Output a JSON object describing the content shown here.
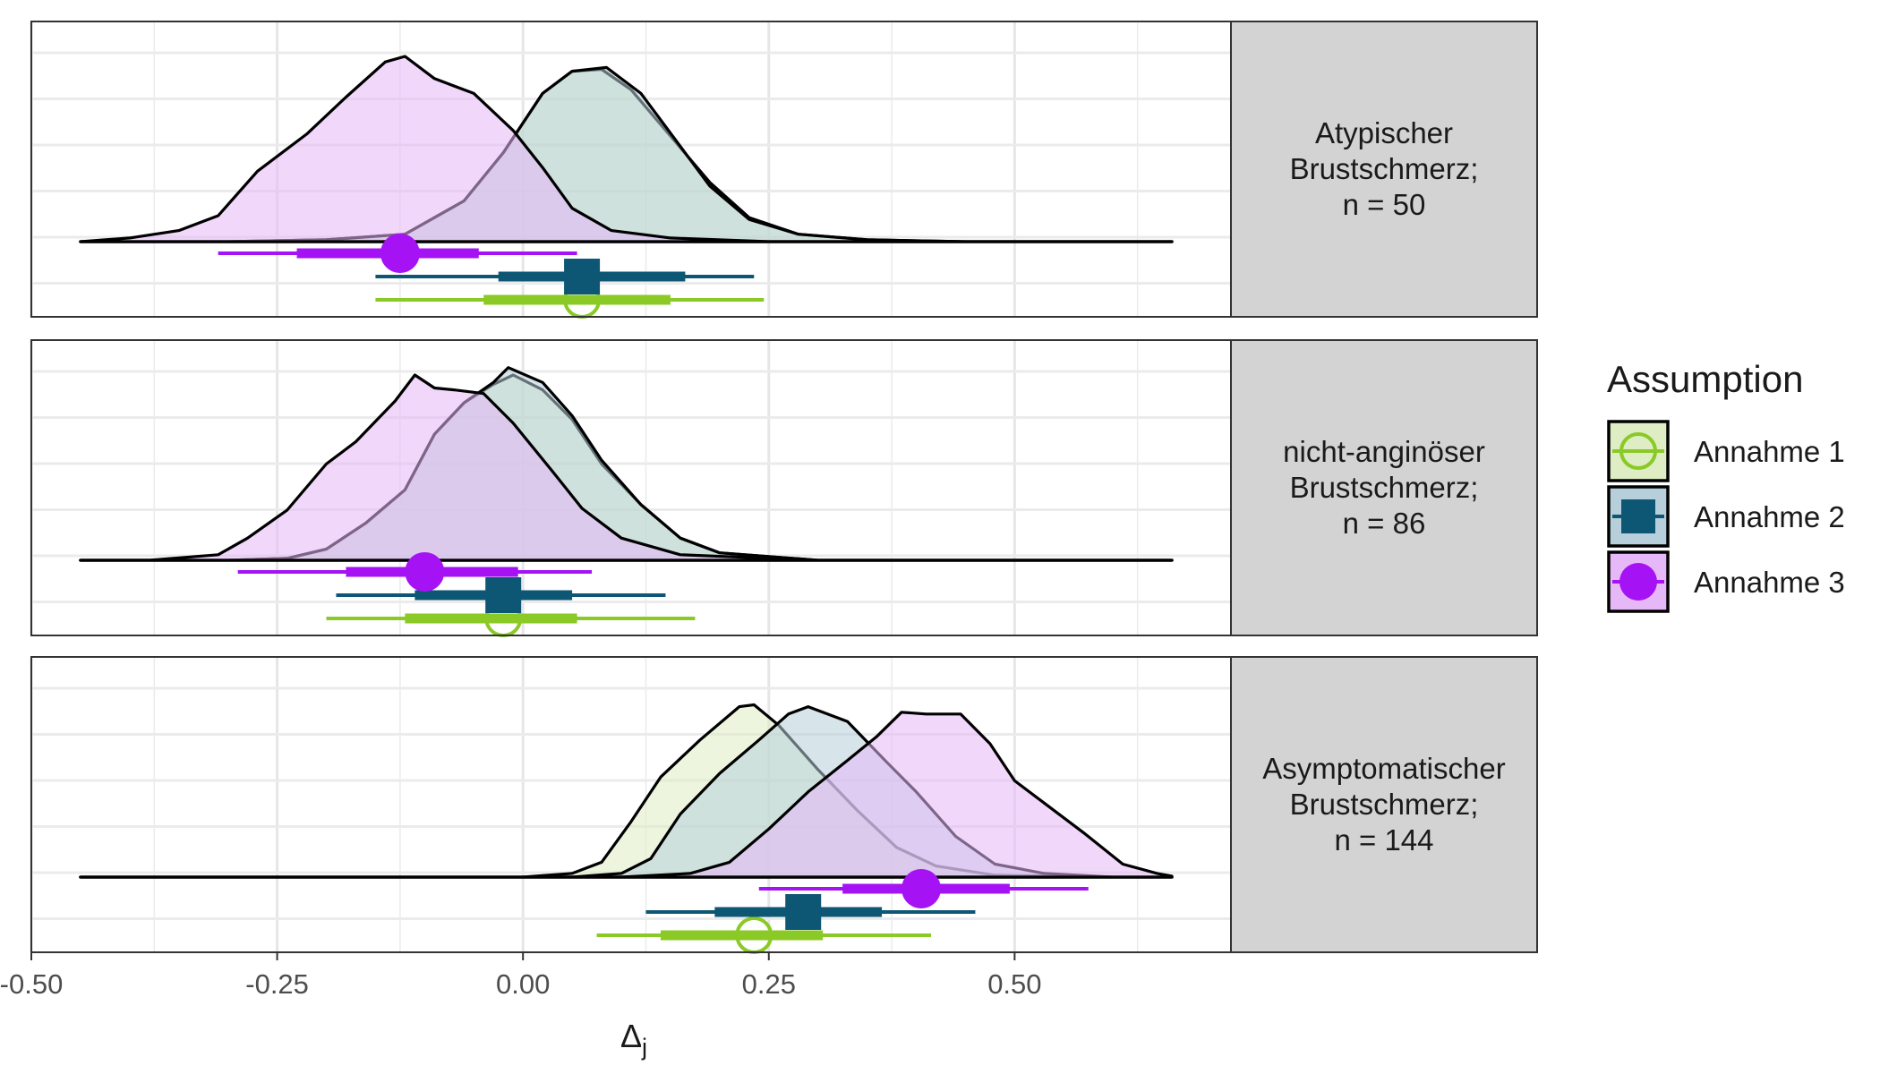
{
  "chart_data": {
    "type": "density",
    "xlabel": "Δ",
    "xlabel_sub": "j",
    "xlim": [
      -0.5,
      0.72
    ],
    "xticks": [
      -0.5,
      -0.25,
      0.0,
      0.25,
      0.5
    ],
    "xtick_labels": [
      "-0.50",
      "-0.25",
      "0.00",
      "0.25",
      "0.50"
    ],
    "grid": true,
    "legend": {
      "title": "Assumption",
      "placement": "right",
      "items": [
        {
          "label": "Annahme 1",
          "color": "#8ac926",
          "fill": "#deedc4",
          "shape": "open-circle"
        },
        {
          "label": "Annahme 2",
          "color": "#0d5775",
          "fill": "#b6cfda",
          "shape": "square"
        },
        {
          "label": "Annahme 3",
          "color": "#a513f4",
          "fill": "#e6b8f8",
          "shape": "circle"
        }
      ]
    },
    "panels": [
      {
        "label": [
          "Atypischer",
          "Brustschmerz;",
          "n = 50"
        ],
        "densities": [
          {
            "series": "Annahme 1",
            "points": [
              [
                -0.45,
                0
              ],
              [
                -0.3,
                0
              ],
              [
                -0.2,
                0.01
              ],
              [
                -0.12,
                0.04
              ],
              [
                -0.06,
                0.22
              ],
              [
                -0.02,
                0.48
              ],
              [
                0.02,
                0.8
              ],
              [
                0.05,
                0.92
              ],
              [
                0.08,
                0.93
              ],
              [
                0.11,
                0.82
              ],
              [
                0.15,
                0.57
              ],
              [
                0.19,
                0.32
              ],
              [
                0.23,
                0.13
              ],
              [
                0.28,
                0.04
              ],
              [
                0.35,
                0.01
              ],
              [
                0.45,
                0
              ],
              [
                0.66,
                0
              ]
            ]
          },
          {
            "series": "Annahme 2",
            "points": [
              [
                -0.45,
                0
              ],
              [
                -0.3,
                0
              ],
              [
                -0.2,
                0.01
              ],
              [
                -0.12,
                0.04
              ],
              [
                -0.06,
                0.22
              ],
              [
                -0.02,
                0.48
              ],
              [
                0.02,
                0.8
              ],
              [
                0.05,
                0.92
              ],
              [
                0.085,
                0.94
              ],
              [
                0.12,
                0.8
              ],
              [
                0.155,
                0.55
              ],
              [
                0.19,
                0.3
              ],
              [
                0.23,
                0.12
              ],
              [
                0.28,
                0.04
              ],
              [
                0.35,
                0.01
              ],
              [
                0.45,
                0
              ],
              [
                0.66,
                0
              ]
            ]
          },
          {
            "series": "Annahme 3",
            "points": [
              [
                -0.45,
                0
              ],
              [
                -0.4,
                0.02
              ],
              [
                -0.35,
                0.06
              ],
              [
                -0.31,
                0.14
              ],
              [
                -0.27,
                0.38
              ],
              [
                -0.22,
                0.58
              ],
              [
                -0.18,
                0.78
              ],
              [
                -0.14,
                0.97
              ],
              [
                -0.12,
                1.0
              ],
              [
                -0.09,
                0.88
              ],
              [
                -0.05,
                0.8
              ],
              [
                -0.01,
                0.6
              ],
              [
                0.02,
                0.4
              ],
              [
                0.05,
                0.18
              ],
              [
                0.09,
                0.06
              ],
              [
                0.15,
                0.02
              ],
              [
                0.25,
                0
              ],
              [
                0.66,
                0
              ]
            ]
          }
        ],
        "intervals": [
          {
            "series": "Annahme 1",
            "point": 0.06,
            "inner": [
              -0.04,
              0.15
            ],
            "outer": [
              -0.15,
              0.245
            ]
          },
          {
            "series": "Annahme 2",
            "point": 0.06,
            "inner": [
              -0.025,
              0.165
            ],
            "outer": [
              -0.15,
              0.235
            ]
          },
          {
            "series": "Annahme 3",
            "point": -0.125,
            "inner": [
              -0.23,
              -0.045
            ],
            "outer": [
              -0.31,
              0.055
            ]
          }
        ]
      },
      {
        "label": [
          "nicht-anginöser",
          "Brustschmerz;",
          "n = 86"
        ],
        "densities": [
          {
            "series": "Annahme 1",
            "points": [
              [
                -0.45,
                0
              ],
              [
                -0.3,
                0
              ],
              [
                -0.24,
                0.01
              ],
              [
                -0.2,
                0.06
              ],
              [
                -0.16,
                0.2
              ],
              [
                -0.12,
                0.38
              ],
              [
                -0.09,
                0.68
              ],
              [
                -0.06,
                0.85
              ],
              [
                -0.03,
                0.95
              ],
              [
                -0.01,
                1.0
              ],
              [
                0.02,
                0.92
              ],
              [
                0.05,
                0.76
              ],
              [
                0.08,
                0.52
              ],
              [
                0.12,
                0.3
              ],
              [
                0.16,
                0.12
              ],
              [
                0.2,
                0.04
              ],
              [
                0.3,
                0
              ],
              [
                0.66,
                0
              ]
            ]
          },
          {
            "series": "Annahme 2",
            "points": [
              [
                -0.45,
                0
              ],
              [
                -0.3,
                0
              ],
              [
                -0.24,
                0.01
              ],
              [
                -0.2,
                0.06
              ],
              [
                -0.16,
                0.2
              ],
              [
                -0.12,
                0.38
              ],
              [
                -0.09,
                0.68
              ],
              [
                -0.06,
                0.85
              ],
              [
                -0.03,
                0.96
              ],
              [
                -0.015,
                1.04
              ],
              [
                0.02,
                0.96
              ],
              [
                0.05,
                0.78
              ],
              [
                0.08,
                0.54
              ],
              [
                0.12,
                0.3
              ],
              [
                0.16,
                0.12
              ],
              [
                0.2,
                0.04
              ],
              [
                0.3,
                0
              ],
              [
                0.66,
                0
              ]
            ]
          },
          {
            "series": "Annahme 3",
            "points": [
              [
                -0.45,
                0
              ],
              [
                -0.38,
                0
              ],
              [
                -0.31,
                0.03
              ],
              [
                -0.28,
                0.12
              ],
              [
                -0.24,
                0.27
              ],
              [
                -0.2,
                0.52
              ],
              [
                -0.17,
                0.64
              ],
              [
                -0.13,
                0.86
              ],
              [
                -0.11,
                1.0
              ],
              [
                -0.09,
                0.93
              ],
              [
                -0.07,
                0.92
              ],
              [
                -0.04,
                0.9
              ],
              [
                -0.01,
                0.74
              ],
              [
                0.03,
                0.48
              ],
              [
                0.06,
                0.28
              ],
              [
                0.1,
                0.12
              ],
              [
                0.16,
                0.03
              ],
              [
                0.3,
                0
              ],
              [
                0.66,
                0
              ]
            ]
          }
        ],
        "intervals": [
          {
            "series": "Annahme 1",
            "point": -0.02,
            "inner": [
              -0.12,
              0.055
            ],
            "outer": [
              -0.2,
              0.175
            ]
          },
          {
            "series": "Annahme 2",
            "point": -0.02,
            "inner": [
              -0.11,
              0.05
            ],
            "outer": [
              -0.19,
              0.145
            ]
          },
          {
            "series": "Annahme 3",
            "point": -0.1,
            "inner": [
              -0.18,
              -0.005
            ],
            "outer": [
              -0.29,
              0.07
            ]
          }
        ]
      },
      {
        "label": [
          "Asymptomatischer",
          "Brustschmerz;",
          "n = 144"
        ],
        "densities": [
          {
            "series": "Annahme 1",
            "points": [
              [
                -0.45,
                0
              ],
              [
                0.0,
                0
              ],
              [
                0.05,
                0.02
              ],
              [
                0.08,
                0.08
              ],
              [
                0.11,
                0.3
              ],
              [
                0.14,
                0.54
              ],
              [
                0.18,
                0.74
              ],
              [
                0.22,
                0.92
              ],
              [
                0.235,
                0.93
              ],
              [
                0.26,
                0.82
              ],
              [
                0.3,
                0.58
              ],
              [
                0.34,
                0.36
              ],
              [
                0.38,
                0.16
              ],
              [
                0.42,
                0.06
              ],
              [
                0.48,
                0.01
              ],
              [
                0.6,
                0
              ],
              [
                0.66,
                0
              ]
            ]
          },
          {
            "series": "Annahme 2",
            "points": [
              [
                -0.45,
                0
              ],
              [
                0.05,
                0
              ],
              [
                0.1,
                0.02
              ],
              [
                0.13,
                0.1
              ],
              [
                0.16,
                0.34
              ],
              [
                0.2,
                0.56
              ],
              [
                0.24,
                0.74
              ],
              [
                0.27,
                0.88
              ],
              [
                0.29,
                0.92
              ],
              [
                0.33,
                0.84
              ],
              [
                0.37,
                0.62
              ],
              [
                0.4,
                0.46
              ],
              [
                0.44,
                0.22
              ],
              [
                0.48,
                0.07
              ],
              [
                0.53,
                0.02
              ],
              [
                0.6,
                0
              ],
              [
                0.66,
                0
              ]
            ]
          },
          {
            "series": "Annahme 3",
            "points": [
              [
                -0.45,
                0
              ],
              [
                0.1,
                0
              ],
              [
                0.17,
                0.02
              ],
              [
                0.21,
                0.08
              ],
              [
                0.25,
                0.26
              ],
              [
                0.29,
                0.46
              ],
              [
                0.33,
                0.63
              ],
              [
                0.36,
                0.76
              ],
              [
                0.385,
                0.89
              ],
              [
                0.41,
                0.88
              ],
              [
                0.445,
                0.88
              ],
              [
                0.475,
                0.72
              ],
              [
                0.5,
                0.52
              ],
              [
                0.53,
                0.4
              ],
              [
                0.57,
                0.24
              ],
              [
                0.61,
                0.07
              ],
              [
                0.645,
                0.02
              ],
              [
                0.66,
                0.005
              ]
            ]
          }
        ],
        "intervals": [
          {
            "series": "Annahme 1",
            "point": 0.235,
            "inner": [
              0.14,
              0.305
            ],
            "outer": [
              0.075,
              0.415
            ]
          },
          {
            "series": "Annahme 2",
            "point": 0.285,
            "inner": [
              0.195,
              0.365
            ],
            "outer": [
              0.125,
              0.46
            ]
          },
          {
            "series": "Annahme 3",
            "point": 0.405,
            "inner": [
              0.325,
              0.495
            ],
            "outer": [
              0.24,
              0.575
            ]
          }
        ]
      }
    ]
  }
}
